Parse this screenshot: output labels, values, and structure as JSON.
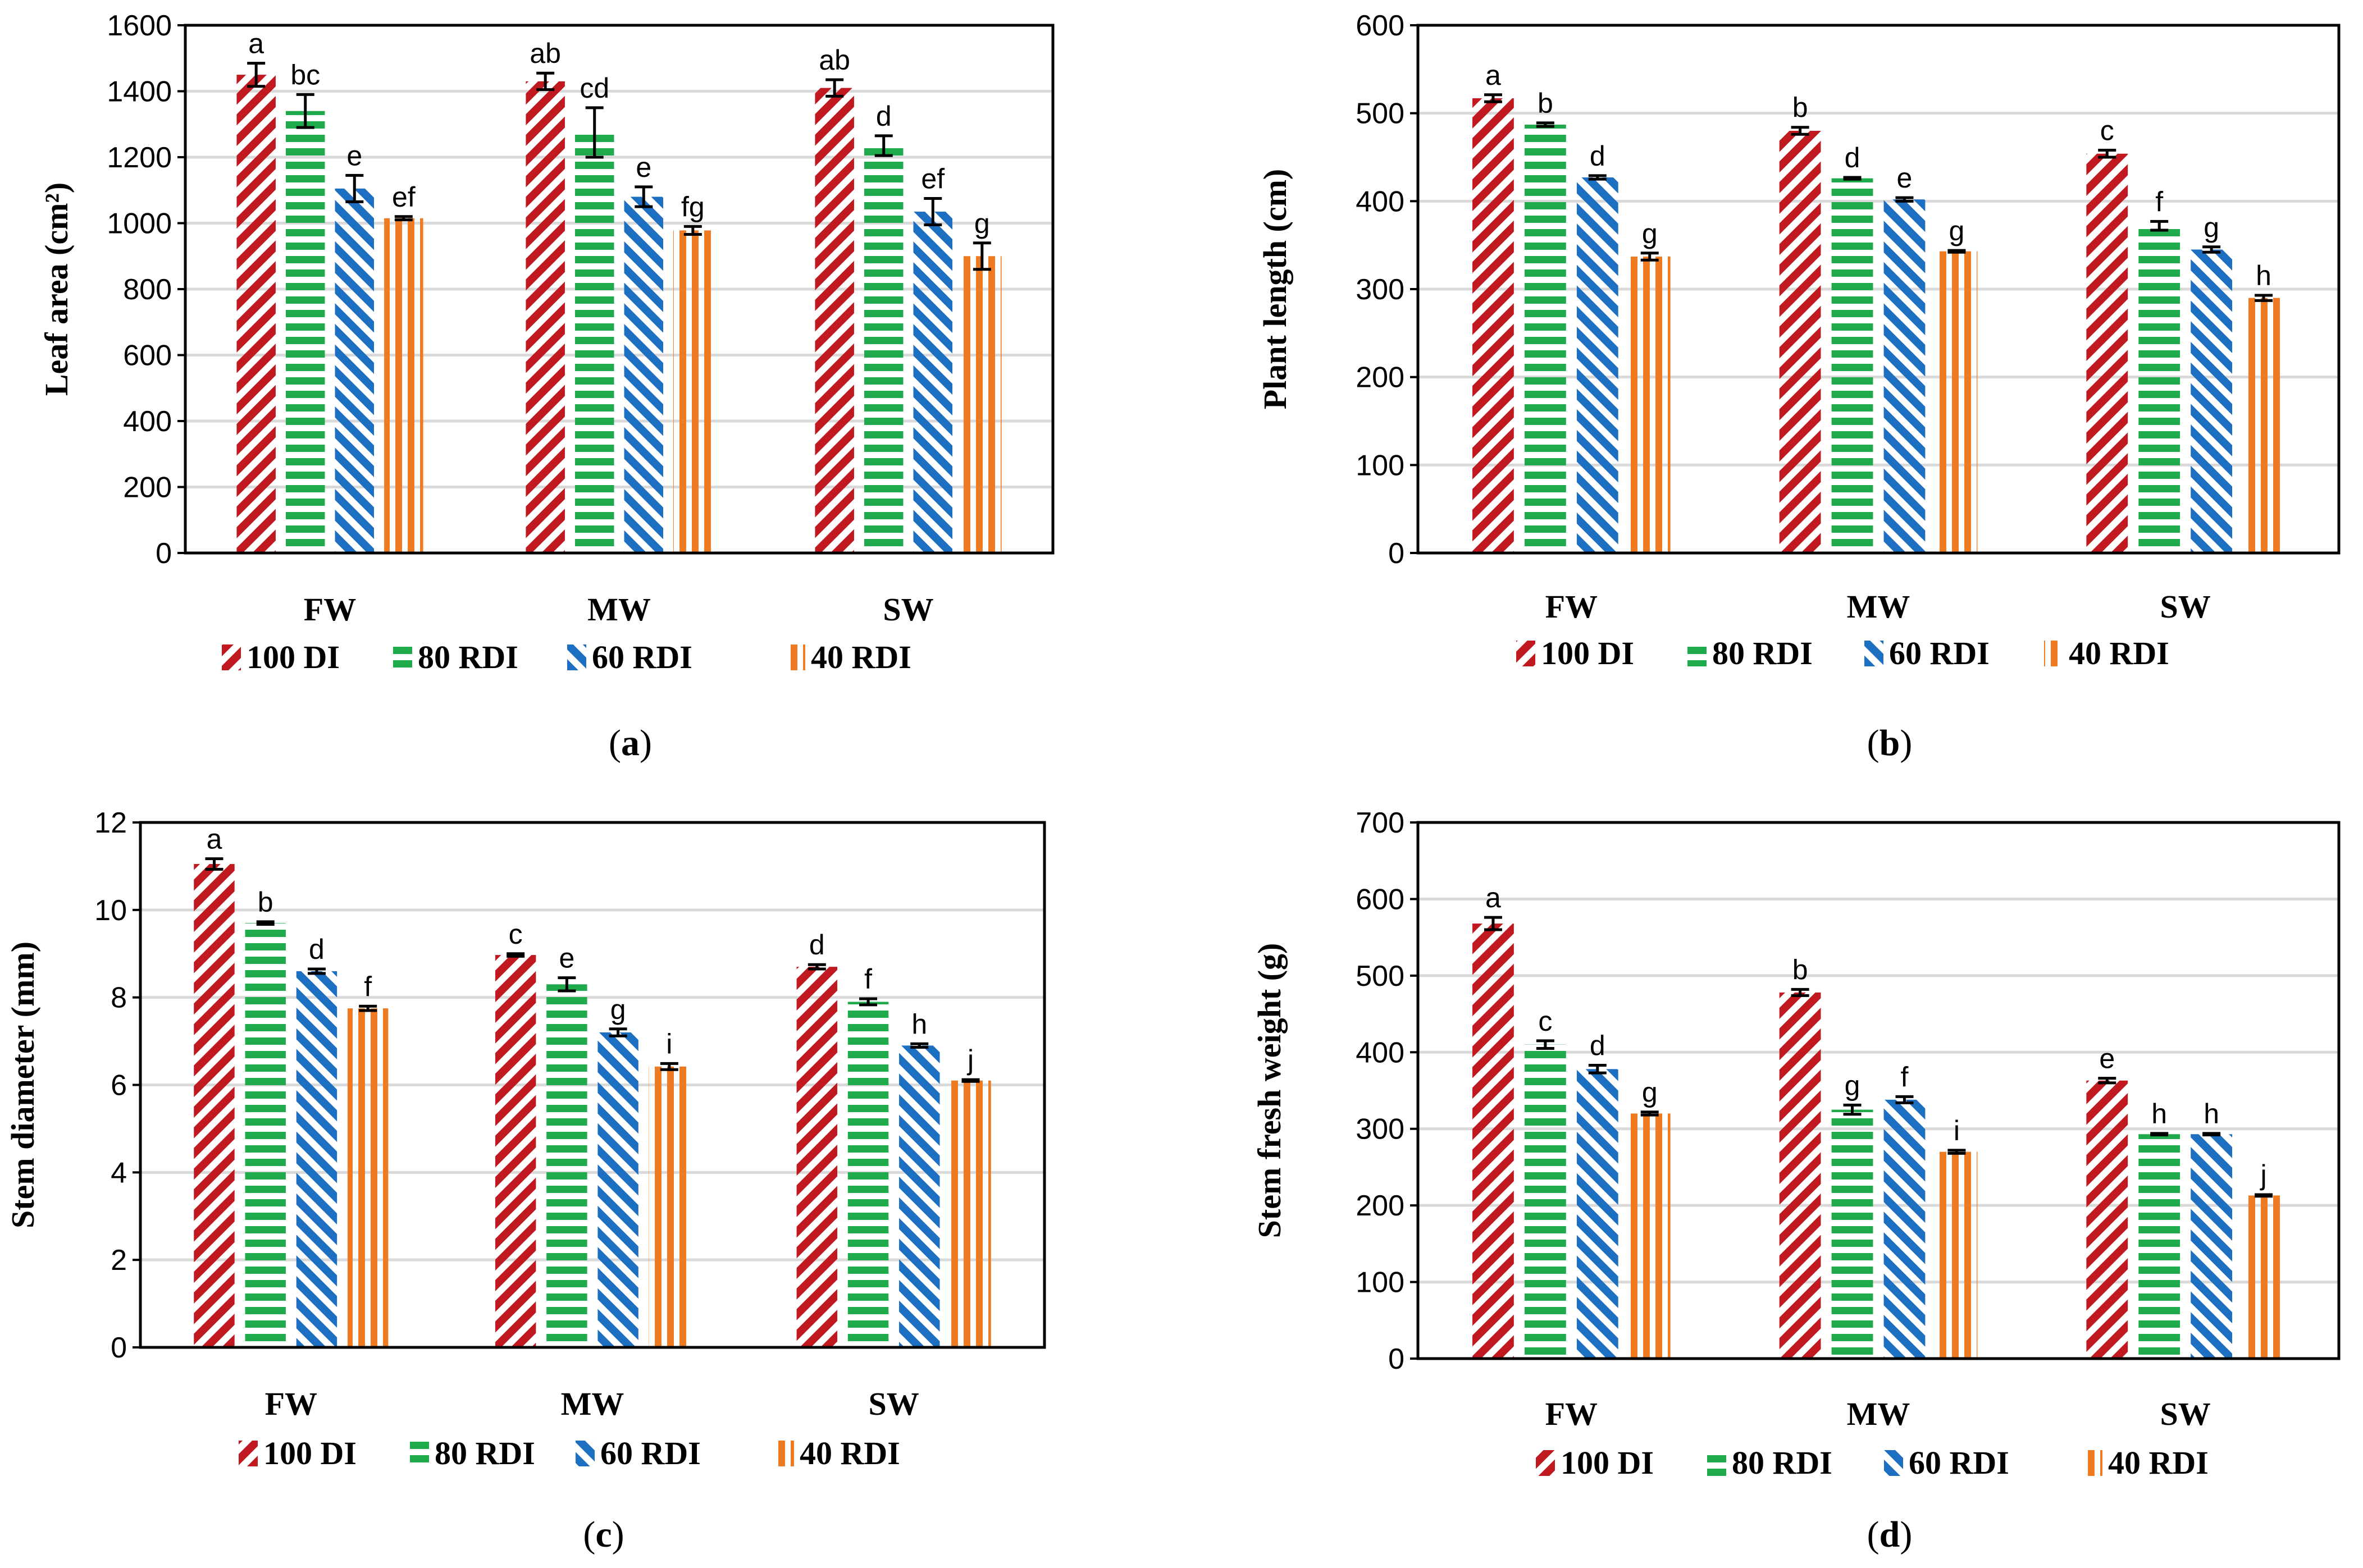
{
  "colors": {
    "100 DI": "#c0191f",
    "80 RDI": "#1faa4b",
    "60 RDI": "#1d6fc2",
    "40 RDI": "#ee7b22",
    "grid": "#d9d9d9",
    "axis": "#000000"
  },
  "chart_data": [
    {
      "type": "bar",
      "panel": "(a)",
      "caption_letter": "a",
      "ylabel": "Leaf area  (cm²)",
      "ylim": [
        0,
        1600
      ],
      "yticks": [
        0,
        200,
        400,
        600,
        800,
        1000,
        1200,
        1400,
        1600
      ],
      "categories": [
        "FW",
        "MW",
        "SW"
      ],
      "series": [
        {
          "name": "100 DI",
          "legend_label": "100 DI",
          "values": [
            1450,
            1430,
            1410
          ],
          "errors": [
            35,
            25,
            25
          ],
          "letters": [
            "a",
            "ab",
            "ab"
          ]
        },
        {
          "name": "80 RDI",
          "legend_label": "80 RDI",
          "values": [
            1340,
            1275,
            1235
          ],
          "errors": [
            50,
            75,
            30
          ],
          "letters": [
            "bc",
            "cd",
            "d"
          ]
        },
        {
          "name": "60 RDI",
          "legend_label": "60  RDI",
          "values": [
            1105,
            1080,
            1035
          ],
          "errors": [
            40,
            30,
            40
          ],
          "letters": [
            "e",
            "e",
            "ef"
          ]
        },
        {
          "name": "40 RDI",
          "legend_label": "40  RDI",
          "values": [
            1015,
            978,
            900
          ],
          "errors": [
            5,
            12,
            40
          ],
          "letters": [
            "ef",
            "fg",
            "g"
          ]
        }
      ]
    },
    {
      "type": "bar",
      "panel": "(b)",
      "caption_letter": "b",
      "ylabel": "Plant length (cm)",
      "ylim": [
        0,
        600
      ],
      "yticks": [
        0,
        100,
        200,
        300,
        400,
        500,
        600
      ],
      "categories": [
        "FW",
        "MW",
        "SW"
      ],
      "series": [
        {
          "name": "100 DI",
          "legend_label": "100 DI",
          "values": [
            517,
            480,
            454
          ],
          "errors": [
            4,
            4,
            4
          ],
          "letters": [
            "a",
            "b",
            "c"
          ]
        },
        {
          "name": "80 RDI",
          "legend_label": "80 RDI",
          "values": [
            487,
            426,
            372
          ],
          "errors": [
            2,
            1,
            5
          ],
          "letters": [
            "b",
            "d",
            "f"
          ]
        },
        {
          "name": "60 RDI",
          "legend_label": "60  RDI",
          "values": [
            427,
            402,
            345
          ],
          "errors": [
            2,
            2,
            3
          ],
          "letters": [
            "d",
            "e",
            "g"
          ]
        },
        {
          "name": "40 RDI",
          "legend_label": "40  RDI",
          "values": [
            337,
            343,
            290
          ],
          "errors": [
            4,
            1,
            3
          ],
          "letters": [
            "g",
            "g",
            "h"
          ]
        }
      ]
    },
    {
      "type": "bar",
      "panel": "(c)",
      "caption_letter": "c",
      "ylabel": "Stem diameter (mm)",
      "ylim": [
        0,
        12
      ],
      "yticks": [
        0,
        2,
        4,
        6,
        8,
        10,
        12
      ],
      "categories": [
        "FW",
        "MW",
        "SW"
      ],
      "series": [
        {
          "name": "100 DI",
          "legend_label": "100 DI",
          "values": [
            11.05,
            8.97,
            8.7
          ],
          "errors": [
            0.12,
            0.03,
            0.05
          ],
          "letters": [
            "a",
            "c",
            "d"
          ]
        },
        {
          "name": "80 RDI",
          "legend_label": "80 RDI",
          "values": [
            9.7,
            8.3,
            7.9
          ],
          "errors": [
            0.03,
            0.15,
            0.07
          ],
          "letters": [
            "b",
            "e",
            "f"
          ]
        },
        {
          "name": "60 RDI",
          "legend_label": "60  RDI",
          "values": [
            8.6,
            7.2,
            6.9
          ],
          "errors": [
            0.05,
            0.08,
            0.04
          ],
          "letters": [
            "d",
            "g",
            "h"
          ]
        },
        {
          "name": "40 RDI",
          "legend_label": "40  RDI",
          "values": [
            7.75,
            6.42,
            6.1
          ],
          "errors": [
            0.05,
            0.07,
            0.02
          ],
          "letters": [
            "f",
            "i",
            "j"
          ]
        }
      ]
    },
    {
      "type": "bar",
      "panel": "(d)",
      "caption_letter": "d",
      "ylabel": "Stem fresh weight (g)",
      "ylim": [
        0,
        700
      ],
      "yticks": [
        0,
        100,
        200,
        300,
        400,
        500,
        600,
        700
      ],
      "categories": [
        "FW",
        "MW",
        "SW"
      ],
      "series": [
        {
          "name": "100 DI",
          "legend_label": "100 DI",
          "values": [
            568,
            478,
            363
          ],
          "errors": [
            8,
            4,
            3
          ],
          "letters": [
            "a",
            "b",
            "e"
          ]
        },
        {
          "name": "80 RDI",
          "legend_label": "80 RDI",
          "values": [
            410,
            325,
            293
          ],
          "errors": [
            5,
            6,
            1
          ],
          "letters": [
            "c",
            "g",
            "h"
          ]
        },
        {
          "name": "60 RDI",
          "legend_label": "60  RDI",
          "values": [
            378,
            338,
            293
          ],
          "errors": [
            5,
            4,
            1
          ],
          "letters": [
            "d",
            "f",
            "h"
          ]
        },
        {
          "name": "40 RDI",
          "legend_label": "40  RDI",
          "values": [
            320,
            270,
            213
          ],
          "errors": [
            2,
            2,
            1
          ],
          "letters": [
            "g",
            "i",
            "j"
          ]
        }
      ]
    }
  ]
}
